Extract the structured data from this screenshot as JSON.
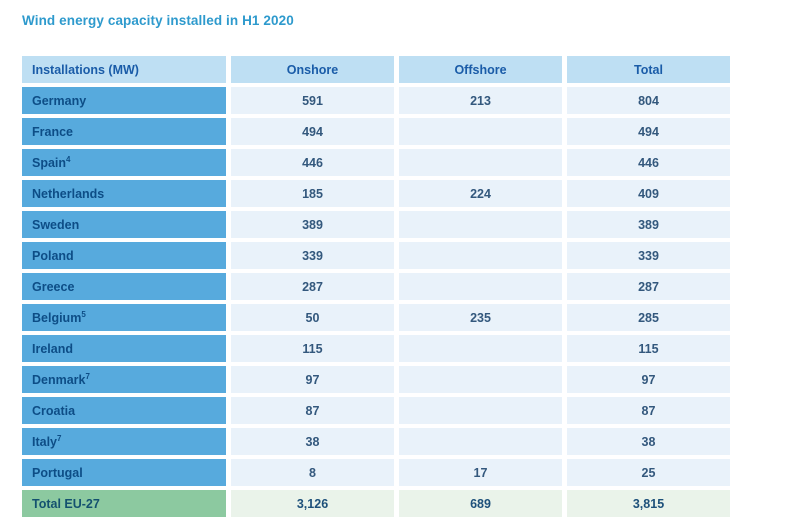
{
  "title": "Wind energy capacity installed in H1 2020",
  "table": {
    "columns": [
      "Installations (MW)",
      "Onshore",
      "Offshore",
      "Total"
    ],
    "rows": [
      {
        "label": "Germany",
        "sup": "",
        "onshore": "591",
        "offshore": "213",
        "total": "804"
      },
      {
        "label": "France",
        "sup": "",
        "onshore": "494",
        "offshore": "",
        "total": "494"
      },
      {
        "label": "Spain",
        "sup": "4",
        "onshore": "446",
        "offshore": "",
        "total": "446"
      },
      {
        "label": "Netherlands",
        "sup": "",
        "onshore": "185",
        "offshore": "224",
        "total": "409"
      },
      {
        "label": "Sweden",
        "sup": "",
        "onshore": "389",
        "offshore": "",
        "total": "389"
      },
      {
        "label": "Poland",
        "sup": "",
        "onshore": "339",
        "offshore": "",
        "total": "339"
      },
      {
        "label": "Greece",
        "sup": "",
        "onshore": "287",
        "offshore": "",
        "total": "287"
      },
      {
        "label": "Belgium",
        "sup": "5",
        "onshore": "50",
        "offshore": "235",
        "total": "285"
      },
      {
        "label": "Ireland",
        "sup": "",
        "onshore": "115",
        "offshore": "",
        "total": "115"
      },
      {
        "label": "Denmark",
        "sup": "7",
        "onshore": "97",
        "offshore": "",
        "total": "97"
      },
      {
        "label": "Croatia",
        "sup": "",
        "onshore": "87",
        "offshore": "",
        "total": "87"
      },
      {
        "label": "Italy",
        "sup": "7",
        "onshore": "38",
        "offshore": "",
        "total": "38"
      },
      {
        "label": "Portugal",
        "sup": "",
        "onshore": "8",
        "offshore": "17",
        "total": "25"
      }
    ],
    "total_row": {
      "label": "Total EU-27",
      "onshore": "3,126",
      "offshore": "689",
      "total": "3,815"
    }
  },
  "chart_data": {
    "type": "table",
    "title": "Wind energy capacity installed in H1 2020",
    "columns": [
      "Installations (MW)",
      "Onshore",
      "Offshore",
      "Total"
    ],
    "rows": [
      [
        "Germany",
        591,
        213,
        804
      ],
      [
        "France",
        494,
        null,
        494
      ],
      [
        "Spain",
        446,
        null,
        446
      ],
      [
        "Netherlands",
        185,
        224,
        409
      ],
      [
        "Sweden",
        389,
        null,
        389
      ],
      [
        "Poland",
        339,
        null,
        339
      ],
      [
        "Greece",
        287,
        null,
        287
      ],
      [
        "Belgium",
        50,
        235,
        285
      ],
      [
        "Ireland",
        115,
        null,
        115
      ],
      [
        "Denmark",
        97,
        null,
        97
      ],
      [
        "Croatia",
        87,
        null,
        87
      ],
      [
        "Italy",
        38,
        null,
        38
      ],
      [
        "Portugal",
        8,
        17,
        25
      ],
      [
        "Total EU-27",
        3126,
        689,
        3815
      ]
    ]
  },
  "colors": {
    "title_text": "#2e9acd",
    "header_bg": "#bedff3",
    "header_text": "#1a5ca8",
    "label_bg": "#57aadd",
    "label_text": "#0d4d86",
    "value_bg": "#e9f2fa",
    "value_text": "#33587d",
    "total_label_bg": "#8cc9a0",
    "total_value_bg": "#eaf3ea"
  }
}
